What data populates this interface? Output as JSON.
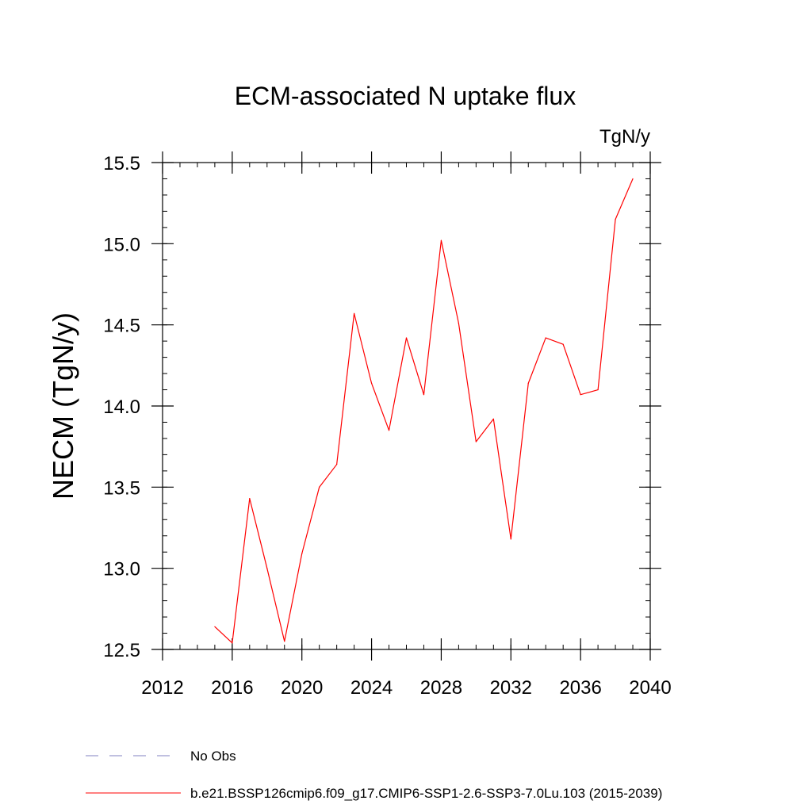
{
  "chart_data": {
    "type": "line",
    "title": "ECM-associated N uptake flux",
    "units_label": "TgN/y",
    "xlabel": "",
    "ylabel": "NECM  (TgN/y)",
    "xlim": [
      2012,
      2040
    ],
    "ylim": [
      12.5,
      15.5
    ],
    "x_ticks": [
      2012,
      2016,
      2020,
      2024,
      2028,
      2032,
      2036,
      2040
    ],
    "y_ticks": [
      "12.5",
      "13.0",
      "13.5",
      "14.0",
      "14.5",
      "15.0",
      "15.5"
    ],
    "x_minor_step": 1,
    "y_minor_step": 0.1,
    "grid": false,
    "series": [
      {
        "name": "b.e21.BSSP126cmip6.f09_g17.CMIP6-SSP1-2.6-SSP3-7.0Lu.103 (2015-2039)",
        "color": "#ff0000",
        "style": "solid",
        "x": [
          2015,
          2016,
          2017,
          2018,
          2019,
          2020,
          2021,
          2022,
          2023,
          2024,
          2025,
          2026,
          2027,
          2028,
          2029,
          2030,
          2031,
          2032,
          2033,
          2034,
          2035,
          2036,
          2037,
          2038,
          2039
        ],
        "y": [
          12.64,
          12.54,
          13.43,
          13.0,
          12.55,
          13.09,
          13.5,
          13.64,
          14.57,
          14.14,
          13.85,
          14.42,
          14.07,
          15.02,
          14.51,
          13.78,
          13.92,
          13.18,
          14.14,
          14.42,
          14.38,
          14.07,
          14.1,
          15.15,
          15.4
        ]
      }
    ],
    "legend": {
      "placement": "bottom",
      "entries": [
        {
          "label": "No Obs",
          "color": "#8080c0",
          "style": "dashed"
        },
        {
          "label": "b.e21.BSSP126cmip6.f09_g17.CMIP6-SSP1-2.6-SSP3-7.0Lu.103 (2015-2039)",
          "color": "#ff0000",
          "style": "solid"
        }
      ]
    }
  }
}
